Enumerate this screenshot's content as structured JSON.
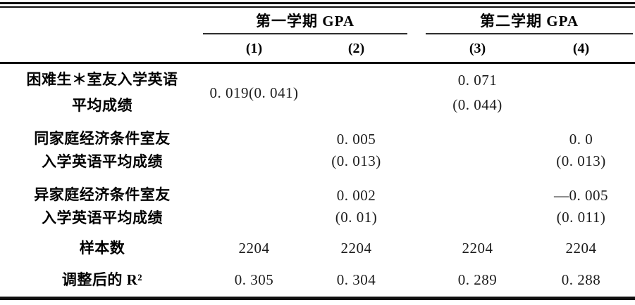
{
  "table": {
    "col_groups": [
      {
        "label": "第一学期 GPA"
      },
      {
        "label": "第二学期 GPA"
      }
    ],
    "col_numbers": [
      "(1)",
      "(2)",
      "(3)",
      "(4)"
    ],
    "rows": [
      {
        "label": [
          "困难生＊室友入学英语",
          "平均成绩"
        ],
        "cells": [
          [
            "0. 019(0. 041)"
          ],
          [],
          [
            "0. 071",
            "(0. 044)"
          ],
          []
        ]
      },
      {
        "label": [
          "同家庭经济条件室友",
          "入学英语平均成绩"
        ],
        "cells": [
          [],
          [
            "0. 005",
            "(0. 013)"
          ],
          [],
          [
            "0. 0",
            "(0. 013)"
          ]
        ]
      },
      {
        "label": [
          "异家庭经济条件室友",
          "入学英语平均成绩"
        ],
        "cells": [
          [],
          [
            "0. 002",
            "(0. 01)"
          ],
          [],
          [
            "—0. 005",
            "(0. 011)"
          ]
        ]
      },
      {
        "label": [
          "样本数"
        ],
        "cells": [
          [
            "2204"
          ],
          [
            "2204"
          ],
          [
            "2204"
          ],
          [
            "2204"
          ]
        ]
      },
      {
        "label": [
          "调整后的 R²"
        ],
        "cells": [
          [
            "0. 305"
          ],
          [
            "0. 304"
          ],
          [
            "0. 289"
          ],
          [
            "0. 288"
          ]
        ]
      }
    ]
  }
}
